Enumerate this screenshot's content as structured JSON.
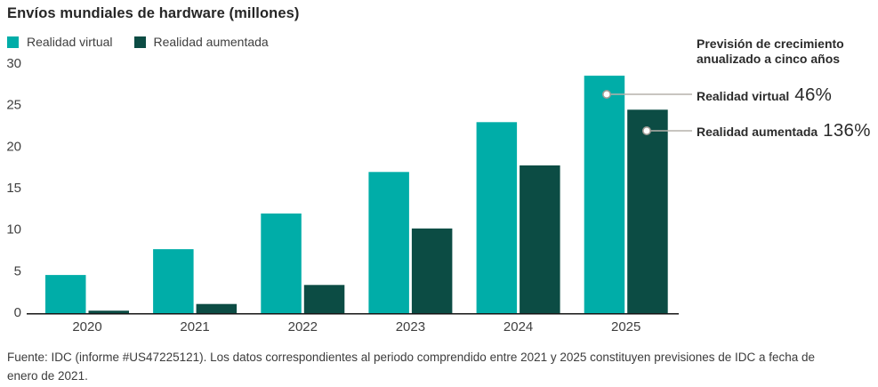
{
  "title": "Envíos mundiales de hardware (millones)",
  "legend": {
    "items": [
      {
        "label": "Realidad virtual",
        "color": "#00ADA8"
      },
      {
        "label": "Realidad aumentada",
        "color": "#0C4C44"
      }
    ]
  },
  "annotations": {
    "heading": "Previsión de crecimiento anualizado a cinco años",
    "items": [
      {
        "label": "Realidad virtual",
        "value": "46%"
      },
      {
        "label": "Realidad aumentada",
        "value": "136%"
      }
    ]
  },
  "footer": "Fuente: IDC (informe #US47225121). Los datos correspondientes al periodo comprendido entre 2021 y 2025 constituyen previsiones de IDC a fecha de enero de 2021.",
  "chart_data": {
    "type": "bar",
    "title": "Envíos mundiales de hardware (millones)",
    "categories": [
      "2020",
      "2021",
      "2022",
      "2023",
      "2024",
      "2025"
    ],
    "series": [
      {
        "name": "Realidad virtual",
        "color": "#00ADA8",
        "values": [
          4.6,
          7.7,
          12.0,
          17.0,
          23.0,
          28.6
        ]
      },
      {
        "name": "Realidad aumentada",
        "color": "#0C4C44",
        "values": [
          0.3,
          1.1,
          3.4,
          10.2,
          17.8,
          24.5
        ]
      }
    ],
    "xlabel": "",
    "ylabel": "",
    "ylim": [
      0,
      30
    ],
    "yticks": [
      0,
      5,
      10,
      15,
      20,
      25,
      30
    ],
    "grid": false,
    "legend_position": "top-left",
    "annotation_colors": {
      "leader_line": "#B6B2AC",
      "dot_fill": "#FFFFFF",
      "dot_stroke": "#A09C96",
      "axis_line": "#161616"
    }
  }
}
